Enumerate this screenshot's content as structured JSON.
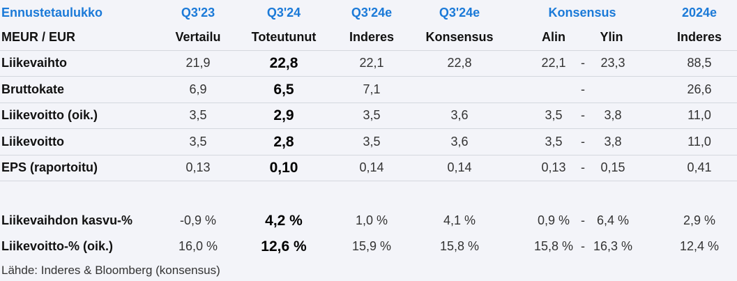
{
  "title": "Ennustetaulukko",
  "header_top": {
    "q3_23": "Q3'23",
    "q3_24": "Q3'24",
    "q3_24e": "Q3'24e",
    "q3_24e_kons": "Q3'24e",
    "konsensus": "Konsensus",
    "y2024e": "2024e"
  },
  "header_sub": {
    "unit": "MEUR / EUR",
    "vertailu": "Vertailu",
    "toteutunut": "Toteutunut",
    "inderes": "Inderes",
    "konsensus": "Konsensus",
    "alin": "Alin",
    "ylin": "Ylin",
    "inderes2": "Inderes"
  },
  "rows": [
    {
      "label": "Liikevaihto",
      "q3_23": "21,9",
      "q3_24": "22,8",
      "inderes": "22,1",
      "kons": "22,8",
      "alin": "22,1",
      "dash": "-",
      "ylin": "23,3",
      "y2024e": "88,5"
    },
    {
      "label": "Bruttokate",
      "q3_23": "6,9",
      "q3_24": "6,5",
      "inderes": "7,1",
      "kons": "",
      "alin": "",
      "dash": "-",
      "ylin": "",
      "y2024e": "26,6"
    },
    {
      "label": "Liikevoitto (oik.)",
      "q3_23": "3,5",
      "q3_24": "2,9",
      "inderes": "3,5",
      "kons": "3,6",
      "alin": "3,5",
      "dash": "-",
      "ylin": "3,8",
      "y2024e": "11,0"
    },
    {
      "label": "Liikevoitto",
      "q3_23": "3,5",
      "q3_24": "2,8",
      "inderes": "3,5",
      "kons": "3,6",
      "alin": "3,5",
      "dash": "-",
      "ylin": "3,8",
      "y2024e": "11,0"
    },
    {
      "label": "EPS (raportoitu)",
      "q3_23": "0,13",
      "q3_24": "0,10",
      "inderes": "0,14",
      "kons": "0,14",
      "alin": "0,13",
      "dash": "-",
      "ylin": "0,15",
      "y2024e": "0,41"
    },
    {
      "label": "Liikevaihdon kasvu-%",
      "q3_23": "-0,9 %",
      "q3_24": "4,2 %",
      "inderes": "1,0 %",
      "kons": "4,1 %",
      "alin": "0,9 %",
      "dash": "-",
      "ylin": "6,4 %",
      "y2024e": "2,9 %"
    },
    {
      "label": "Liikevoitto-% (oik.)",
      "q3_23": "16,0 %",
      "q3_24": "12,6 %",
      "inderes": "15,9 %",
      "kons": "15,8 %",
      "alin": "15,8 %",
      "dash": "-",
      "ylin": "16,3 %",
      "y2024e": "12,4 %"
    }
  ],
  "source": "Lähde: Inderes & Bloomberg  (konsensus)"
}
